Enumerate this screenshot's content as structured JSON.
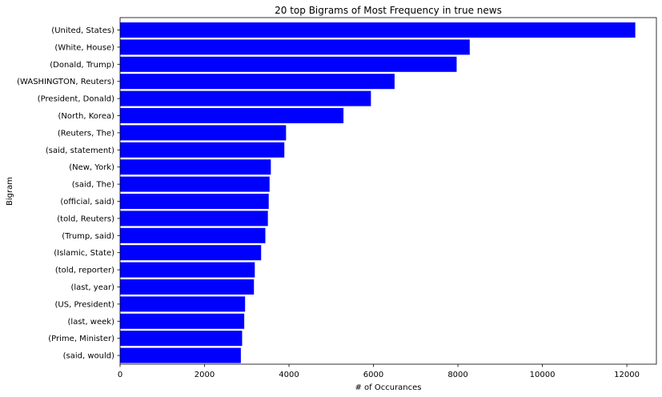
{
  "chart_data": {
    "type": "bar",
    "orientation": "horizontal",
    "title": "20 top Bigrams of Most Frequency in true news",
    "xlabel": "# of Occurances",
    "ylabel": "Bigram",
    "xlim": [
      0,
      12700
    ],
    "xticks": [
      0,
      2000,
      4000,
      6000,
      8000,
      10000,
      12000
    ],
    "categories": [
      "(United, States)",
      "(White, House)",
      "(Donald, Trump)",
      "(WASHINGTON, Reuters)",
      "(President, Donald)",
      "(North, Korea)",
      "(Reuters, The)",
      "(said, statement)",
      "(New, York)",
      "(said, The)",
      "(official, said)",
      "(told, Reuters)",
      "(Trump, said)",
      "(Islamic, State)",
      "(told, reporter)",
      "(last, year)",
      "(US, President)",
      "(last, week)",
      "(Prime, Minister)",
      "(said, would)"
    ],
    "values": [
      12200,
      8280,
      7970,
      6500,
      5940,
      5290,
      3930,
      3890,
      3570,
      3540,
      3520,
      3500,
      3440,
      3340,
      3190,
      3170,
      2960,
      2940,
      2890,
      2860
    ],
    "bar_color": "#0000ff",
    "grid": false,
    "legend": "none"
  }
}
